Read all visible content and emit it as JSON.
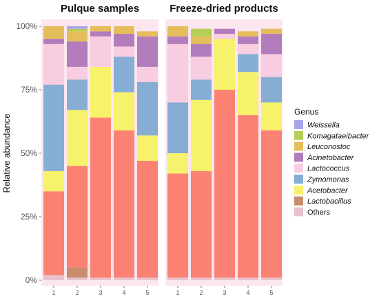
{
  "chart_data": {
    "type": "bar",
    "stacked": true,
    "ylabel": "Relative abundance",
    "y_ticks": [
      "0%",
      "25%",
      "50%",
      "75%",
      "100%"
    ],
    "ylim": [
      0,
      100
    ],
    "legend": {
      "title": "Genus",
      "position": "right"
    },
    "panels": [
      {
        "title": "Pulque samples",
        "categories": [
          "1",
          "2",
          "3",
          "4",
          "5"
        ]
      },
      {
        "title": "Freeze-dried products",
        "categories": [
          "1",
          "2",
          "3",
          "4",
          "5"
        ]
      }
    ],
    "series": [
      {
        "name": "Others",
        "italic": false,
        "color": "#e8c3cd",
        "values": [
          [
            2,
            1,
            1,
            1,
            1
          ],
          [
            1,
            1,
            1,
            1,
            1
          ]
        ]
      },
      {
        "name": "Lactobacillus",
        "italic": true,
        "color": "#c98c6f",
        "values": [
          [
            0,
            4,
            0,
            0,
            0
          ],
          [
            0,
            0,
            0,
            0,
            0
          ]
        ]
      },
      {
        "name": "",
        "italic": false,
        "color": "#fb8272",
        "values": [
          [
            33,
            40,
            63,
            58,
            46
          ],
          [
            41,
            42,
            74,
            64,
            58
          ]
        ]
      },
      {
        "name": "Acetobacter",
        "italic": true,
        "color": "#f7f26b",
        "values": [
          [
            8,
            22,
            20,
            15,
            10
          ],
          [
            8,
            28,
            20,
            17,
            11
          ]
        ]
      },
      {
        "name": "Zymomonas",
        "italic": true,
        "color": "#86add4",
        "values": [
          [
            34,
            12,
            0,
            14,
            21
          ],
          [
            20,
            8,
            0,
            7,
            10
          ]
        ]
      },
      {
        "name": "Lactococcus",
        "italic": true,
        "color": "#f8cde1",
        "values": [
          [
            16,
            5,
            12,
            4,
            6
          ],
          [
            23,
            9,
            2,
            4,
            9
          ]
        ]
      },
      {
        "name": "Acinetobacter",
        "italic": true,
        "color": "#b37cbc",
        "values": [
          [
            2,
            10,
            2,
            5,
            12
          ],
          [
            3,
            5,
            2,
            3,
            8
          ]
        ]
      },
      {
        "name": "Leuconostoc",
        "italic": true,
        "color": "#e5bd5b",
        "values": [
          [
            5,
            4,
            2,
            3,
            2
          ],
          [
            4,
            3,
            0,
            2,
            2
          ]
        ]
      },
      {
        "name": "Komagataeibacter",
        "italic": true,
        "color": "#b5cf56",
        "values": [
          [
            0,
            1,
            0,
            0,
            0
          ],
          [
            0,
            3,
            0,
            0,
            0
          ]
        ]
      },
      {
        "name": "Weissella",
        "italic": true,
        "color": "#a9a4e8",
        "values": [
          [
            0,
            1,
            0,
            0,
            0
          ],
          [
            0,
            0,
            0,
            0,
            0
          ]
        ]
      }
    ]
  }
}
